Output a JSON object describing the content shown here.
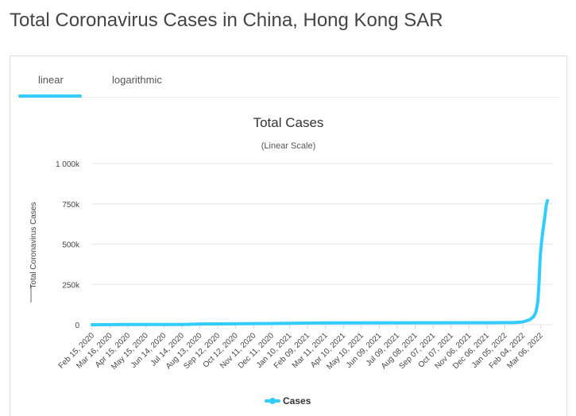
{
  "page": {
    "title": "Total Coronavirus Cases in China, Hong Kong SAR"
  },
  "tabs": [
    {
      "label": "linear",
      "active": true
    },
    {
      "label": "logarithmic",
      "active": false
    }
  ],
  "colors": {
    "accent": "#33ccff",
    "series": "#33ccff",
    "grid": "#e6e6e6"
  },
  "chart_data": {
    "type": "line",
    "title": "Total Cases",
    "subtitle": "(Linear Scale)",
    "ylabel": "Total Coronavirus Cases",
    "xlabel": "",
    "ylim": [
      0,
      1000000
    ],
    "yticks": [
      {
        "value": 0,
        "label": "0"
      },
      {
        "value": 250000,
        "label": "250k"
      },
      {
        "value": 500000,
        "label": "500k"
      },
      {
        "value": 750000,
        "label": "750k"
      },
      {
        "value": 1000000,
        "label": "1 000k"
      }
    ],
    "xrange": [
      "2020-02-15",
      "2022-03-25"
    ],
    "xticks": [
      {
        "date": "2020-02-15",
        "label": "Feb 15, 2020"
      },
      {
        "date": "2020-03-16",
        "label": "Mar 16, 2020"
      },
      {
        "date": "2020-04-15",
        "label": "Apr 15, 2020"
      },
      {
        "date": "2020-05-15",
        "label": "May 15, 2020"
      },
      {
        "date": "2020-06-14",
        "label": "Jun 14, 2020"
      },
      {
        "date": "2020-07-14",
        "label": "Jul 14, 2020"
      },
      {
        "date": "2020-08-13",
        "label": "Aug 13, 2020"
      },
      {
        "date": "2020-09-12",
        "label": "Sep 12, 2020"
      },
      {
        "date": "2020-10-12",
        "label": "Oct 12, 2020"
      },
      {
        "date": "2020-11-11",
        "label": "Nov 11, 2020"
      },
      {
        "date": "2020-12-11",
        "label": "Dec 11, 2020"
      },
      {
        "date": "2021-01-10",
        "label": "Jan 10, 2021"
      },
      {
        "date": "2021-02-09",
        "label": "Feb 09, 2021"
      },
      {
        "date": "2021-03-11",
        "label": "Mar 11, 2021"
      },
      {
        "date": "2021-04-10",
        "label": "Apr 10, 2021"
      },
      {
        "date": "2021-05-10",
        "label": "May 10, 2021"
      },
      {
        "date": "2021-06-09",
        "label": "Jun 09, 2021"
      },
      {
        "date": "2021-07-09",
        "label": "Jul 09, 2021"
      },
      {
        "date": "2021-08-08",
        "label": "Aug 08, 2021"
      },
      {
        "date": "2021-09-07",
        "label": "Sep 07, 2021"
      },
      {
        "date": "2021-10-07",
        "label": "Oct 07, 2021"
      },
      {
        "date": "2021-11-06",
        "label": "Nov 06, 2021"
      },
      {
        "date": "2021-12-06",
        "label": "Dec 06, 2021"
      },
      {
        "date": "2022-01-05",
        "label": "Jan 05, 2022"
      },
      {
        "date": "2022-02-04",
        "label": "Feb 04, 2022"
      },
      {
        "date": "2022-03-06",
        "label": "Mar 06, 2022"
      }
    ],
    "series": [
      {
        "name": "Cases",
        "points": [
          {
            "date": "2020-02-15",
            "value": 56
          },
          {
            "date": "2020-04-15",
            "value": 1017
          },
          {
            "date": "2020-07-14",
            "value": 1500
          },
          {
            "date": "2020-08-13",
            "value": 4300
          },
          {
            "date": "2020-12-11",
            "value": 7300
          },
          {
            "date": "2021-03-11",
            "value": 11300
          },
          {
            "date": "2021-12-06",
            "value": 12500
          },
          {
            "date": "2022-01-20",
            "value": 13000
          },
          {
            "date": "2022-02-04",
            "value": 17000
          },
          {
            "date": "2022-02-15",
            "value": 30000
          },
          {
            "date": "2022-02-22",
            "value": 50000
          },
          {
            "date": "2022-02-26",
            "value": 80000
          },
          {
            "date": "2022-03-01",
            "value": 140000
          },
          {
            "date": "2022-03-03",
            "value": 250000
          },
          {
            "date": "2022-03-05",
            "value": 420000
          },
          {
            "date": "2022-03-07",
            "value": 500000
          },
          {
            "date": "2022-03-09",
            "value": 570000
          },
          {
            "date": "2022-03-11",
            "value": 625000
          },
          {
            "date": "2022-03-13",
            "value": 680000
          },
          {
            "date": "2022-03-15",
            "value": 740000
          },
          {
            "date": "2022-03-17",
            "value": 770000
          }
        ]
      }
    ],
    "legend": {
      "position": "bottom-center"
    },
    "grid": true
  }
}
